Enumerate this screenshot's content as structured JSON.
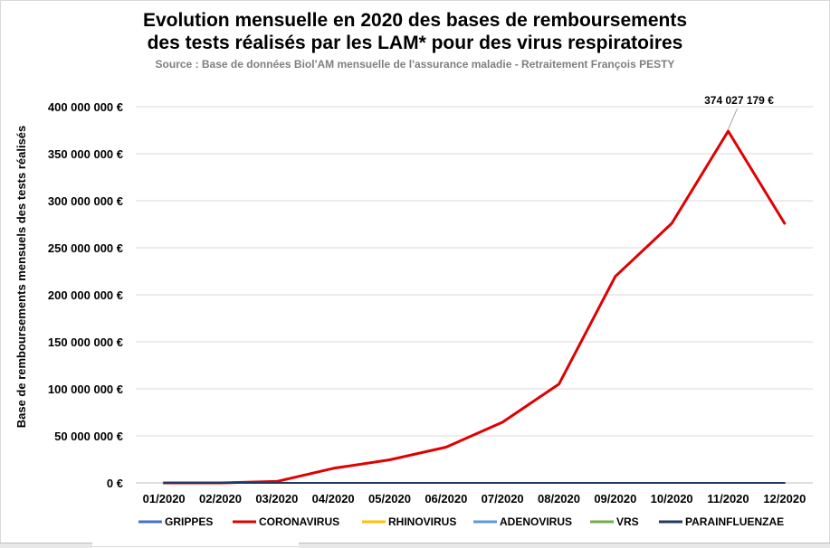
{
  "chart_data": {
    "type": "line",
    "title_line1": "Evolution mensuelle en 2020 des bases de remboursements",
    "title_line2": "des tests réalisés par les LAM* pour des virus respiratoires",
    "subtitle": "Source : Base de données Biol'AM mensuelle de l'assurance maladie - Retraitement François PESTY",
    "xlabel": "",
    "ylabel": "Base de remboursements mensuels des tests réalisés",
    "ylim": [
      0,
      400000000
    ],
    "yticks": [
      {
        "value": 0,
        "label": "0 €"
      },
      {
        "value": 50000000,
        "label": "50 000 000 €"
      },
      {
        "value": 100000000,
        "label": "100 000 000 €"
      },
      {
        "value": 150000000,
        "label": "150 000 000 €"
      },
      {
        "value": 200000000,
        "label": "200 000 000 €"
      },
      {
        "value": 250000000,
        "label": "250 000 000 €"
      },
      {
        "value": 300000000,
        "label": "300 000 000 €"
      },
      {
        "value": 350000000,
        "label": "350 000 000 €"
      },
      {
        "value": 400000000,
        "label": "400 000 000 €"
      }
    ],
    "categories": [
      "01/2020",
      "02/2020",
      "03/2020",
      "04/2020",
      "05/2020",
      "06/2020",
      "07/2020",
      "08/2020",
      "09/2020",
      "10/2020",
      "11/2020",
      "12/2020"
    ],
    "grid": true,
    "legend_position": "bottom",
    "series": [
      {
        "name": "GRIPPES",
        "color": "#4472c4",
        "values": [
          0,
          0,
          0,
          0,
          0,
          0,
          0,
          0,
          0,
          0,
          0,
          0
        ]
      },
      {
        "name": "CORONAVIRUS",
        "color": "#e00000",
        "values": [
          0,
          0,
          1500000,
          15500000,
          24500000,
          38000000,
          64500000,
          105000000,
          219500000,
          276000000,
          374027179,
          276000000
        ]
      },
      {
        "name": "RHINOVIRUS",
        "color": "#ffc000",
        "values": [
          0,
          0,
          0,
          0,
          0,
          0,
          0,
          0,
          0,
          0,
          0,
          0
        ]
      },
      {
        "name": "ADENOVIRUS",
        "color": "#5b9bd5",
        "values": [
          0,
          0,
          0,
          0,
          0,
          0,
          0,
          0,
          0,
          0,
          0,
          0
        ]
      },
      {
        "name": "VRS",
        "color": "#70ad47",
        "values": [
          0,
          0,
          0,
          0,
          0,
          0,
          0,
          0,
          0,
          0,
          0,
          0
        ]
      },
      {
        "name": "PARAINFLUENZAE",
        "color": "#1f3864",
        "values": [
          0,
          0,
          0,
          0,
          0,
          0,
          0,
          0,
          0,
          0,
          0,
          0
        ]
      }
    ],
    "annotations": [
      {
        "series": "CORONAVIRUS",
        "category": "11/2020",
        "text": "374 027 179 €"
      }
    ]
  }
}
